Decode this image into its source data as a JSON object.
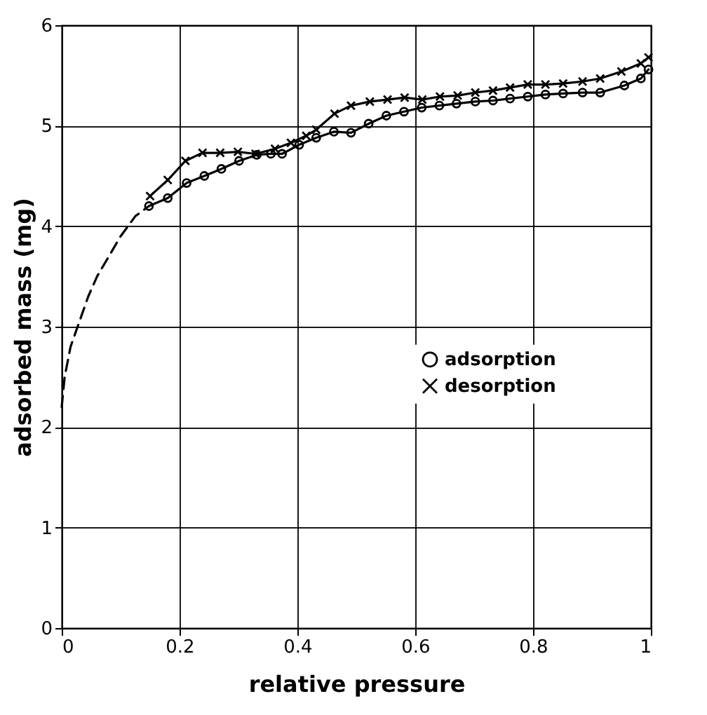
{
  "chart_data": {
    "type": "line",
    "xlabel": "relative pressure",
    "ylabel": "adsorbed mass (mg)",
    "xlim": [
      0,
      1
    ],
    "xticks": [
      0,
      0.2,
      0.4,
      0.6,
      0.8,
      1
    ],
    "ylim": [
      0,
      6
    ],
    "yticks": [
      0,
      1,
      2,
      3,
      4,
      5,
      6
    ],
    "grid": true,
    "legend": "right",
    "series": [
      {
        "name": "adsorption",
        "color": "#000000",
        "marker": "circle",
        "line_style": "solid",
        "x": [
          0.148,
          0.18,
          0.212,
          0.242,
          0.271,
          0.301,
          0.331,
          0.355,
          0.374,
          0.403,
          0.432,
          0.462,
          0.491,
          0.521,
          0.551,
          0.581,
          0.611,
          0.641,
          0.67,
          0.702,
          0.732,
          0.761,
          0.791,
          0.821,
          0.851,
          0.884,
          0.914,
          0.955,
          0.983,
          0.996
        ],
        "values": [
          4.2,
          4.28,
          4.43,
          4.5,
          4.57,
          4.65,
          4.71,
          4.72,
          4.72,
          4.81,
          4.88,
          4.94,
          4.93,
          5.02,
          5.1,
          5.14,
          5.18,
          5.2,
          5.22,
          5.24,
          5.25,
          5.27,
          5.29,
          5.31,
          5.32,
          5.33,
          5.33,
          5.4,
          5.47,
          5.56
        ]
      },
      {
        "name": "desorption",
        "color": "#000000",
        "marker": "cross",
        "line_style": "solid",
        "x": [
          0.15,
          0.18,
          0.21,
          0.239,
          0.269,
          0.299,
          0.329,
          0.362,
          0.389,
          0.415,
          0.432,
          0.463,
          0.491,
          0.523,
          0.553,
          0.582,
          0.612,
          0.642,
          0.672,
          0.702,
          0.732,
          0.761,
          0.791,
          0.821,
          0.851,
          0.884,
          0.914,
          0.95,
          0.983,
          0.996
        ],
        "values": [
          4.3,
          4.46,
          4.65,
          4.73,
          4.73,
          4.74,
          4.72,
          4.77,
          4.83,
          4.9,
          4.96,
          5.12,
          5.2,
          5.24,
          5.26,
          5.28,
          5.26,
          5.29,
          5.3,
          5.33,
          5.35,
          5.38,
          5.41,
          5.41,
          5.42,
          5.44,
          5.47,
          5.54,
          5.62,
          5.68
        ]
      },
      {
        "color": "#000000",
        "marker": "none",
        "line_style": "dashed",
        "x": [
          0,
          0.005,
          0.015,
          0.027,
          0.045,
          0.06,
          0.08,
          0.1,
          0.125,
          0.148
        ],
        "values": [
          2.2,
          2.5,
          2.8,
          3.0,
          3.3,
          3.5,
          3.7,
          3.9,
          4.1,
          4.2
        ]
      }
    ]
  }
}
